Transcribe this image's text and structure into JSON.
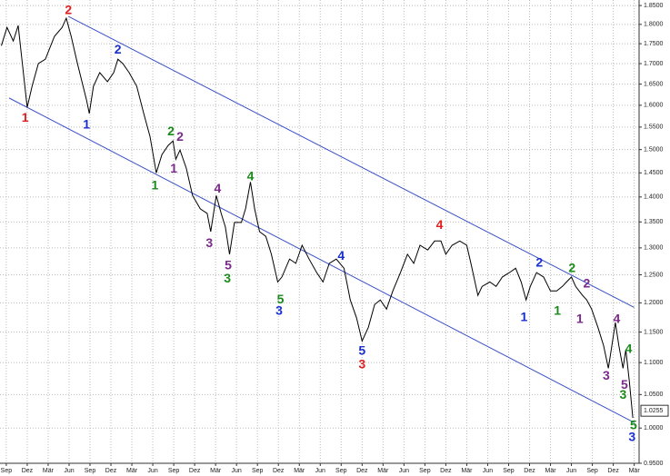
{
  "chart_data": {
    "type": "line",
    "y_log_scale": true,
    "grid": true,
    "y_axis_side": "right",
    "xlim": [
      -0.9,
      90.7
    ],
    "ylim": [
      0.95,
      1.865
    ],
    "xticks": [
      {
        "value": 0,
        "label": "Sep"
      },
      {
        "value": 3,
        "label": "Dez"
      },
      {
        "value": 6,
        "label": "Mär"
      },
      {
        "value": 9,
        "label": "Jun"
      },
      {
        "value": 12,
        "label": "Sep"
      },
      {
        "value": 15,
        "label": "Dez"
      },
      {
        "value": 18,
        "label": "Mär"
      },
      {
        "value": 21,
        "label": "Jun"
      },
      {
        "value": 24,
        "label": "Sep"
      },
      {
        "value": 27,
        "label": "Dez"
      },
      {
        "value": 30,
        "label": "Mär"
      },
      {
        "value": 33,
        "label": "Jun"
      },
      {
        "value": 36,
        "label": "Sep"
      },
      {
        "value": 39,
        "label": "Dez"
      },
      {
        "value": 42,
        "label": "Mär"
      },
      {
        "value": 45,
        "label": "Jun"
      },
      {
        "value": 48,
        "label": "Sep"
      },
      {
        "value": 51,
        "label": "Dez"
      },
      {
        "value": 54,
        "label": "Mär"
      },
      {
        "value": 57,
        "label": "Jun"
      },
      {
        "value": 60,
        "label": "Sep"
      },
      {
        "value": 63,
        "label": "Dez"
      },
      {
        "value": 66,
        "label": "Mär"
      },
      {
        "value": 69,
        "label": "Jun"
      },
      {
        "value": 72,
        "label": "Sep"
      },
      {
        "value": 75,
        "label": "Dez"
      },
      {
        "value": 78,
        "label": "Mär"
      },
      {
        "value": 81,
        "label": "Jun"
      },
      {
        "value": 84,
        "label": "Sep"
      },
      {
        "value": 87,
        "label": "Dez"
      },
      {
        "value": 90,
        "label": "Mär"
      }
    ],
    "yticks": [
      {
        "value": 0.95,
        "label": "0.9500"
      },
      {
        "value": 1.0,
        "label": "1.0000"
      },
      {
        "value": 1.05,
        "label": "1.0500"
      },
      {
        "value": 1.1,
        "label": "1.1000"
      },
      {
        "value": 1.15,
        "label": "1.1500"
      },
      {
        "value": 1.2,
        "label": "1.2000"
      },
      {
        "value": 1.25,
        "label": "1.2500"
      },
      {
        "value": 1.3,
        "label": "1.3000"
      },
      {
        "value": 1.35,
        "label": "1.3500"
      },
      {
        "value": 1.4,
        "label": "1.4000"
      },
      {
        "value": 1.45,
        "label": "1.4500"
      },
      {
        "value": 1.5,
        "label": "1.5000"
      },
      {
        "value": 1.55,
        "label": "1.5500"
      },
      {
        "value": 1.6,
        "label": "1.6000"
      },
      {
        "value": 1.65,
        "label": "1.6500"
      },
      {
        "value": 1.7,
        "label": "1.7000"
      },
      {
        "value": 1.75,
        "label": "1.7500"
      },
      {
        "value": 1.8,
        "label": "1.8000"
      },
      {
        "value": 1.85,
        "label": "1.8500"
      }
    ],
    "series": [
      {
        "color": "#000000",
        "x": [
          -0.7,
          0.1,
          1.0,
          1.7,
          2.3,
          3.0,
          3.7,
          4.6,
          5.6,
          6.9,
          8.0,
          8.6,
          9.3,
          10.2,
          11.5,
          11.9,
          12.5,
          13.4,
          14.5,
          15.4,
          16.0,
          16.7,
          17.6,
          18.7,
          19.7,
          20.6,
          21.5,
          22.3,
          23.2,
          23.9,
          24.3,
          24.9,
          25.8,
          26.7,
          27.8,
          28.8,
          29.3,
          30.1,
          30.8,
          31.4,
          32.0,
          32.7,
          33.7,
          34.3,
          35.0,
          35.6,
          36.3,
          37.2,
          38.0,
          38.9,
          39.5,
          40.6,
          41.5,
          42.4,
          43.4,
          44.5,
          45.4,
          46.3,
          47.3,
          48.4,
          49.3,
          50.2,
          51.0,
          51.9,
          52.8,
          53.6,
          54.5,
          55.4,
          56.5,
          57.5,
          58.4,
          59.3,
          60.4,
          61.4,
          62.3,
          63.0,
          63.9,
          65.0,
          66.0,
          66.6,
          67.6,
          68.2,
          69.3,
          70.2,
          71.1,
          72.1,
          73.0,
          73.8,
          74.5,
          75.1,
          76.0,
          77.0,
          78.0,
          78.9,
          79.7,
          80.3,
          81.0,
          81.6,
          82.6,
          83.2,
          83.9,
          84.8,
          85.6,
          86.3,
          86.8,
          87.3,
          87.8,
          88.4,
          88.8,
          89.3,
          89.8
        ],
        "values": [
          1.745,
          1.792,
          1.757,
          1.797,
          1.7,
          1.595,
          1.645,
          1.7,
          1.711,
          1.769,
          1.792,
          1.816,
          1.769,
          1.7,
          1.612,
          1.581,
          1.645,
          1.678,
          1.656,
          1.678,
          1.711,
          1.7,
          1.678,
          1.645,
          1.581,
          1.529,
          1.45,
          1.489,
          1.509,
          1.519,
          1.479,
          1.499,
          1.46,
          1.403,
          1.376,
          1.367,
          1.331,
          1.403,
          1.367,
          1.34,
          1.288,
          1.349,
          1.349,
          1.376,
          1.431,
          1.376,
          1.331,
          1.322,
          1.288,
          1.237,
          1.246,
          1.279,
          1.271,
          1.305,
          1.279,
          1.254,
          1.237,
          1.271,
          1.279,
          1.262,
          1.205,
          1.174,
          1.135,
          1.158,
          1.197,
          1.205,
          1.189,
          1.221,
          1.254,
          1.288,
          1.271,
          1.305,
          1.296,
          1.313,
          1.313,
          1.288,
          1.305,
          1.313,
          1.305,
          1.271,
          1.213,
          1.229,
          1.237,
          1.229,
          1.246,
          1.254,
          1.262,
          1.237,
          1.205,
          1.229,
          1.254,
          1.246,
          1.221,
          1.221,
          1.229,
          1.237,
          1.246,
          1.229,
          1.213,
          1.205,
          1.189,
          1.158,
          1.128,
          1.091,
          1.128,
          1.166,
          1.128,
          1.091,
          1.121,
          1.07,
          1.015
        ]
      }
    ],
    "trendlines": [
      {
        "color": "#3a50c8",
        "x": [
          8.9,
          90.0
        ],
        "values": [
          1.821,
          1.192
        ]
      },
      {
        "color": "#3a50c8",
        "x": [
          0.4,
          90.0
        ],
        "values": [
          1.617,
          1.008
        ]
      }
    ],
    "last_price": {
      "value": 1.0255,
      "label": "1.0255"
    },
    "annotations": [
      {
        "text": "1",
        "color": "#e02020",
        "x": 2.7,
        "y": 1.57
      },
      {
        "text": "2",
        "color": "#e02020",
        "x": 8.9,
        "y": 1.836
      },
      {
        "text": "3",
        "color": "#e02020",
        "x": 51.0,
        "y": 1.096
      },
      {
        "text": "4",
        "color": "#e02020",
        "x": 62.1,
        "y": 1.343
      },
      {
        "text": "1",
        "color": "#1a2fd0",
        "x": 11.5,
        "y": 1.554
      },
      {
        "text": "2",
        "color": "#1a2fd0",
        "x": 16.0,
        "y": 1.734
      },
      {
        "text": "3",
        "color": "#1a2fd0",
        "x": 39.1,
        "y": 1.185
      },
      {
        "text": "4",
        "color": "#1a2fd0",
        "x": 48.0,
        "y": 1.284
      },
      {
        "text": "5",
        "color": "#1a2fd0",
        "x": 51.0,
        "y": 1.118
      },
      {
        "text": "1",
        "color": "#1a2fd0",
        "x": 74.2,
        "y": 1.174
      },
      {
        "text": "2",
        "color": "#1a2fd0",
        "x": 76.4,
        "y": 1.271
      },
      {
        "text": "3",
        "color": "#1a2fd0",
        "x": 89.7,
        "y": 0.986
      },
      {
        "text": "1",
        "color": "#1a8a1a",
        "x": 21.3,
        "y": 1.422
      },
      {
        "text": "2",
        "color": "#1a8a1a",
        "x": 23.6,
        "y": 1.539
      },
      {
        "text": "3",
        "color": "#1a8a1a",
        "x": 31.7,
        "y": 1.242
      },
      {
        "text": "4",
        "color": "#1a8a1a",
        "x": 35.0,
        "y": 1.441
      },
      {
        "text": "5",
        "color": "#1a8a1a",
        "x": 39.3,
        "y": 1.205
      },
      {
        "text": "1",
        "color": "#1a8a1a",
        "x": 79.0,
        "y": 1.185
      },
      {
        "text": "2",
        "color": "#1a8a1a",
        "x": 81.1,
        "y": 1.261
      },
      {
        "text": "3",
        "color": "#1a8a1a",
        "x": 88.4,
        "y": 1.049
      },
      {
        "text": "4",
        "color": "#1a8a1a",
        "x": 89.2,
        "y": 1.121
      },
      {
        "text": "5",
        "color": "#1a8a1a",
        "x": 89.9,
        "y": 1.003
      },
      {
        "text": "1",
        "color": "#7a2a8a",
        "x": 24.0,
        "y": 1.458
      },
      {
        "text": "2",
        "color": "#7a2a8a",
        "x": 24.9,
        "y": 1.527
      },
      {
        "text": "3",
        "color": "#7a2a8a",
        "x": 29.1,
        "y": 1.308
      },
      {
        "text": "4",
        "color": "#7a2a8a",
        "x": 30.3,
        "y": 1.416
      },
      {
        "text": "5",
        "color": "#7a2a8a",
        "x": 31.8,
        "y": 1.266
      },
      {
        "text": "1",
        "color": "#7a2a8a",
        "x": 82.2,
        "y": 1.171
      },
      {
        "text": "2",
        "color": "#7a2a8a",
        "x": 83.2,
        "y": 1.233
      },
      {
        "text": "3",
        "color": "#7a2a8a",
        "x": 86.0,
        "y": 1.078
      },
      {
        "text": "4",
        "color": "#7a2a8a",
        "x": 87.5,
        "y": 1.171
      },
      {
        "text": "5",
        "color": "#7a2a8a",
        "x": 88.6,
        "y": 1.064
      }
    ]
  }
}
